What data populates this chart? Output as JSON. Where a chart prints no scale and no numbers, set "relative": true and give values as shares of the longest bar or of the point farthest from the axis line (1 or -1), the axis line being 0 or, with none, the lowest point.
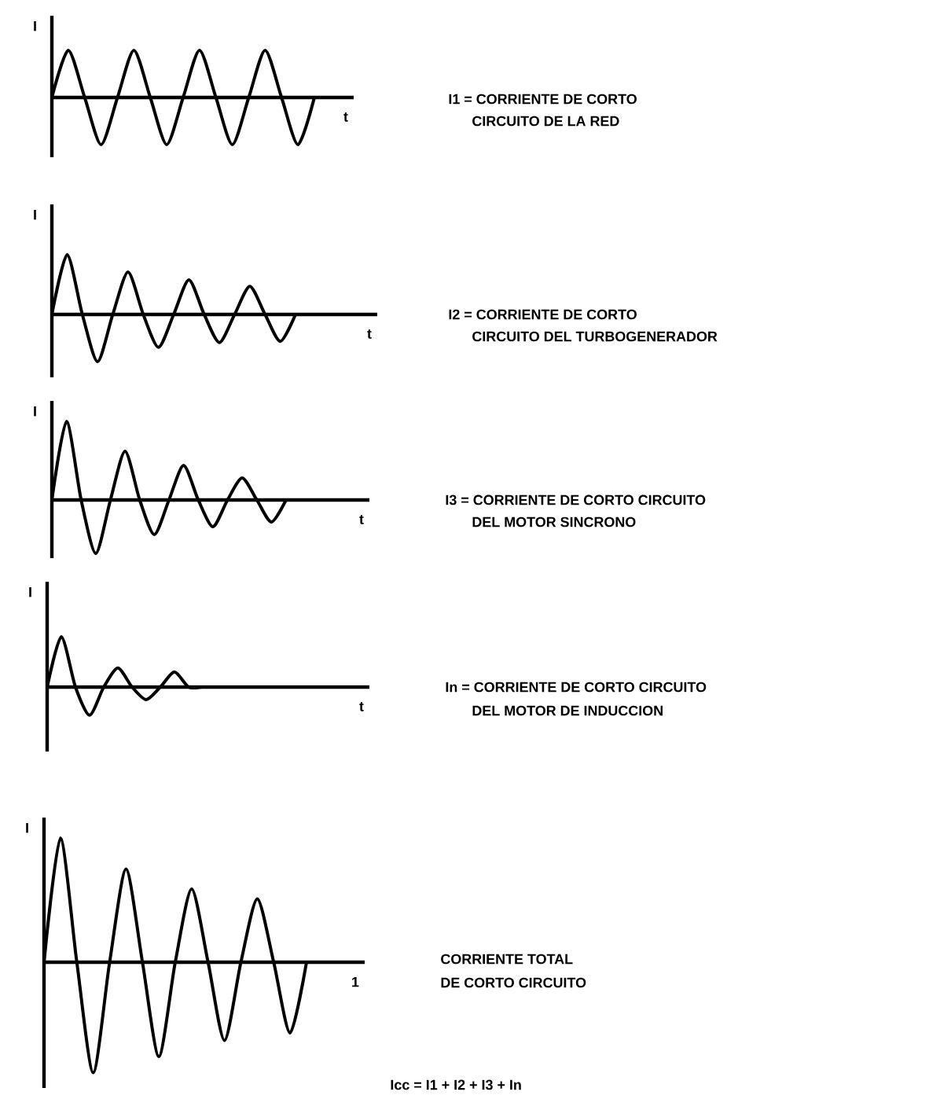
{
  "chart_data": [
    {
      "type": "line",
      "relative": true,
      "xlabel": "t",
      "ylabel": "I",
      "color": "#000000",
      "categories": [
        null,
        null,
        null,
        null,
        null,
        null,
        null,
        null,
        null,
        null,
        null,
        null,
        null,
        null,
        null,
        null,
        null
      ],
      "values": [
        0,
        1,
        0,
        -1,
        0,
        1,
        0,
        -1,
        0,
        1,
        0,
        -1,
        0,
        1,
        0,
        -1,
        0
      ],
      "annotations": [
        "I1 = CORRIENTE DE CORTO",
        "CIRCUITO DE LA RED"
      ]
    },
    {
      "type": "line",
      "relative": true,
      "xlabel": "t",
      "ylabel": "I",
      "color": "#000000",
      "categories": [
        null,
        null,
        null,
        null,
        null,
        null,
        null,
        null,
        null,
        null,
        null,
        null,
        null,
        null,
        null,
        null,
        null
      ],
      "values": [
        0,
        1,
        0,
        -0.79,
        0,
        0.71,
        0,
        -0.55,
        0,
        0.58,
        0,
        -0.47,
        0,
        0.47,
        0,
        -0.45,
        0
      ],
      "annotations": [
        "I2 = CORRIENTE DE CORTO",
        "CIRCUITO DEL TURBOGENERADOR"
      ]
    },
    {
      "type": "line",
      "relative": true,
      "xlabel": "t",
      "ylabel": "I",
      "color": "#000000",
      "categories": [
        null,
        null,
        null,
        null,
        null,
        null,
        null,
        null,
        null,
        null,
        null,
        null,
        null,
        null,
        null,
        null,
        null
      ],
      "values": [
        0,
        1,
        0,
        -0.68,
        0,
        0.62,
        0,
        -0.44,
        0,
        0.44,
        0,
        -0.34,
        0,
        0.28,
        0,
        -0.28,
        0
      ],
      "annotations": [
        "I3 = CORRIENTE DE CORTO CIRCUITO",
        "DEL MOTOR SINCRONO"
      ]
    },
    {
      "type": "line",
      "relative": true,
      "xlabel": "t",
      "ylabel": "I",
      "color": "#000000",
      "categories": [
        null,
        null,
        null,
        null,
        null,
        null,
        null,
        null,
        null,
        null,
        null,
        null,
        null,
        null,
        null,
        null,
        null,
        null,
        null,
        null,
        null
      ],
      "values": [
        0,
        1,
        0,
        -0.56,
        0,
        0.38,
        0,
        -0.25,
        0,
        0.3,
        0,
        0,
        0,
        0,
        0,
        0,
        0,
        0,
        0,
        0,
        0
      ],
      "annotations": [
        "In = CORRIENTE DE CORTO CIRCUITO",
        "DEL MOTOR DE INDUCCION"
      ]
    },
    {
      "type": "line",
      "relative": true,
      "xlabel": "1",
      "ylabel": "I",
      "color": "#000000",
      "categories": [
        null,
        null,
        null,
        null,
        null,
        null,
        null,
        null,
        null,
        null,
        null,
        null,
        null,
        null,
        null,
        null,
        null
      ],
      "values": [
        0,
        1,
        0,
        -0.89,
        0,
        0.75,
        0,
        -0.76,
        0,
        0.59,
        0,
        -0.63,
        0,
        0.51,
        0,
        -0.57,
        0
      ],
      "annotations": [
        "CORRIENTE TOTAL",
        "DE CORTO CIRCUITO",
        "Icc = I1 + I2 + I3 + In"
      ]
    }
  ]
}
